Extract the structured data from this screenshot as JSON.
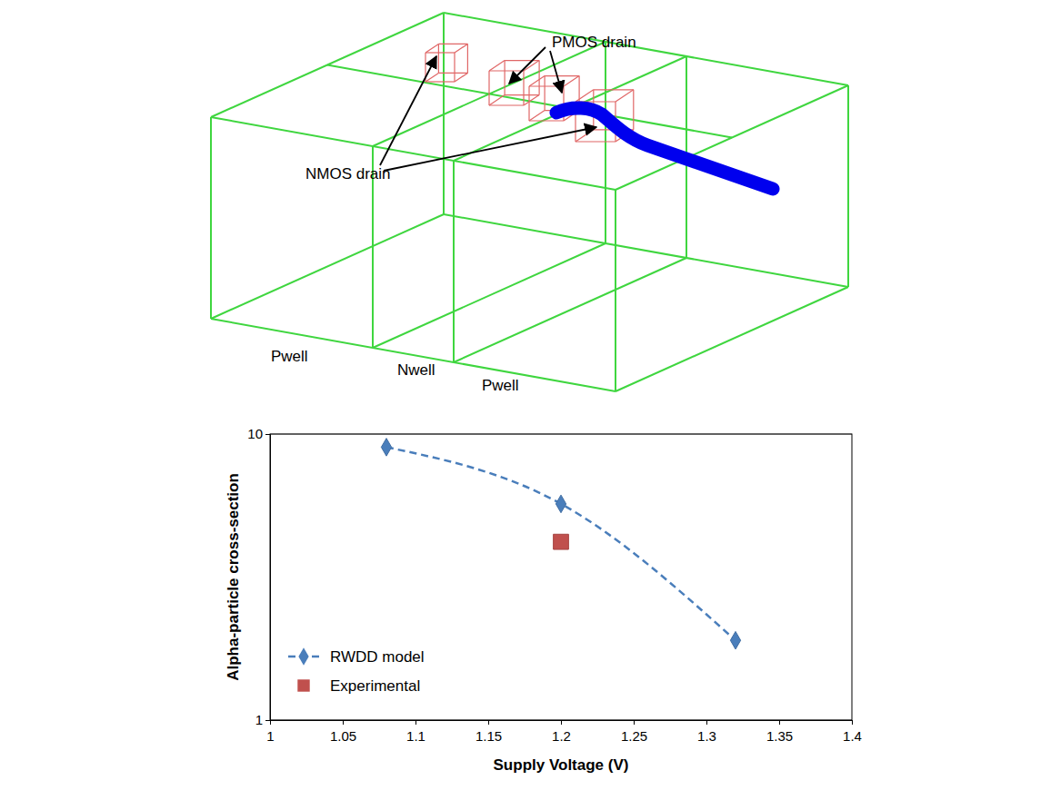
{
  "chart_data": {
    "type": "line",
    "x_label": "Supply Voltage (V)",
    "y_label": "Alpha-particle cross-section",
    "log": "y",
    "grid": true,
    "legend": "lower left",
    "xlim": [
      1,
      1.4
    ],
    "xticks": [
      1,
      1.05,
      1.1,
      1.15,
      1.2,
      1.25,
      1.3,
      1.35,
      1.4
    ],
    "ylim": [
      1,
      10
    ],
    "yticks": [
      1,
      10
    ],
    "series": [
      {
        "name": "RWDD model",
        "type": "line",
        "color": "#4a7ebb",
        "marker": "diamond",
        "line_style": "dashed",
        "x": [
          1.08,
          1.2,
          1.32
        ],
        "values": [
          9.0,
          5.7,
          1.9
        ]
      },
      {
        "name": "Experimental",
        "type": "scatter",
        "color": "#c0504d",
        "marker": "square",
        "x": [
          1.2
        ],
        "values": [
          4.2
        ]
      }
    ]
  },
  "diagram": {
    "annotations": [
      "PMOS drain",
      "NMOS drain"
    ],
    "regions": [
      "Pwell",
      "Nwell",
      "Pwell"
    ]
  }
}
